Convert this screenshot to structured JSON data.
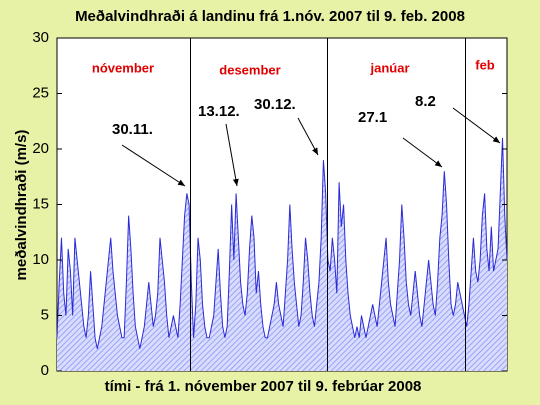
{
  "chart_data": {
    "type": "area",
    "title": "Meðalvindhraði á landinu frá 1.nóv. 2007 til 9. feb. 2008",
    "y_label": "meðalvindhraði (m/s)",
    "x_label": "tími - frá 1. nóvember 2007 til 9. febrúar 2008",
    "months": [
      "nóvember",
      "desember",
      "janúar",
      "feb"
    ],
    "annotations": [
      "30.11.",
      "13.12.",
      "30.12.",
      "27.1",
      "8.2"
    ],
    "color": "#2a2ad8",
    "ylim": [
      0,
      30
    ],
    "yticks": [
      0,
      5,
      10,
      15,
      20,
      25,
      30
    ],
    "values": [
      3,
      8,
      12,
      7,
      5,
      11,
      9,
      5,
      12,
      10,
      8,
      6,
      4,
      3,
      5,
      9,
      6,
      3,
      2,
      3,
      4,
      6,
      8,
      10,
      12,
      9,
      7,
      5,
      4,
      3,
      3,
      8,
      14,
      11,
      7,
      4,
      3,
      2,
      3,
      4,
      6,
      8,
      6,
      4,
      5,
      7,
      12,
      10,
      8,
      5,
      3,
      4,
      5,
      4,
      3,
      6,
      10,
      14,
      16,
      15,
      8,
      3,
      6,
      12,
      10,
      6,
      4,
      3,
      3,
      4,
      5,
      8,
      11,
      7,
      4,
      3,
      4,
      9,
      15,
      10,
      16,
      12,
      8,
      6,
      5,
      7,
      11,
      14,
      12,
      7,
      9,
      6,
      4,
      3,
      3,
      4,
      5,
      6,
      8,
      6,
      5,
      4,
      7,
      10,
      15,
      11,
      8,
      6,
      4,
      5,
      8,
      12,
      10,
      7,
      5,
      4,
      6,
      8,
      12,
      19,
      16,
      10,
      9,
      12,
      10,
      7,
      17,
      13,
      15,
      10,
      7,
      5,
      4,
      3,
      4,
      3,
      5,
      4,
      3,
      4,
      5,
      6,
      5,
      4,
      6,
      8,
      10,
      12,
      8,
      6,
      5,
      4,
      7,
      10,
      15,
      12,
      8,
      6,
      5,
      7,
      9,
      7,
      5,
      4,
      6,
      8,
      10,
      8,
      6,
      5,
      8,
      12,
      14,
      18,
      15,
      10,
      6,
      5,
      6,
      8,
      7,
      6,
      5,
      4,
      6,
      9,
      12,
      9,
      8,
      10,
      14,
      16,
      11,
      9,
      13,
      9,
      10,
      11,
      16,
      21,
      14,
      10
    ]
  }
}
